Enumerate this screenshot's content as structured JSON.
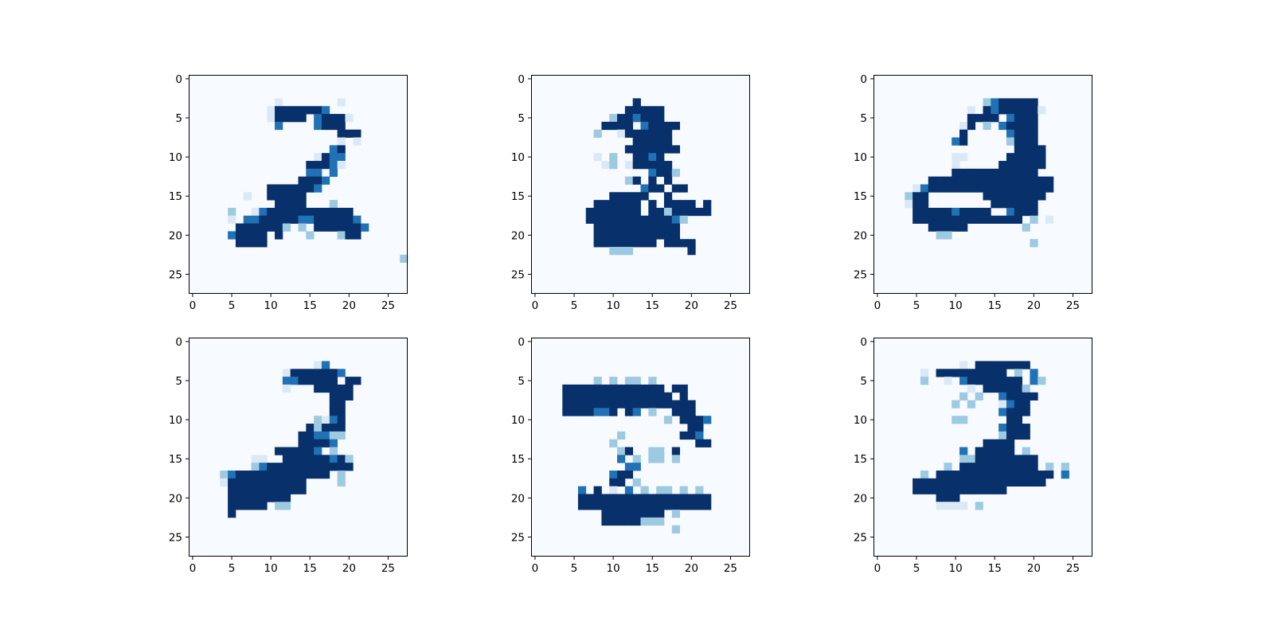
{
  "chart_data": [
    {
      "type": "heatmap",
      "title": "",
      "xlabel": "",
      "ylabel": "",
      "colormap": "Blues",
      "xlim": [
        -0.5,
        27.5
      ],
      "ylim": [
        27.5,
        -0.5
      ],
      "xticks": [
        0,
        5,
        10,
        15,
        20,
        25
      ],
      "yticks": [
        0,
        5,
        10,
        15,
        20,
        25
      ],
      "grid": false,
      "rows": [
        "............................",
        "............................",
        "............................",
        "...........1.......1........",
        "..........14444443..........",
        "..........14444.34441.......",
        "...........3....3444........",
        "...................444.......",
        "...................1.1.......",
        "..................34.........",
        "................1433.........",
        "...............44431.........",
        "...............33.3..........",
        "..............4443...........",
        "..........4444443............",
        ".......1..44444..............",
        "...........4444...2...........",
        ".....2..1344444444444......",
        ".....1.334444433444443......",
        "......4444442.2.4444443......",
        ".....34444.4...2...244.......",
        "......4444....................",
        "..............................",
        "...........................2..",
        "............................",
        "............................",
        "............................",
        "............................"
      ]
    },
    {
      "type": "heatmap",
      "title": "",
      "xlabel": "",
      "ylabel": "",
      "colormap": "Blues",
      "xlim": [
        -0.5,
        27.5
      ],
      "ylim": [
        27.5,
        -0.5
      ],
      "xticks": [
        0,
        5,
        10,
        15,
        20,
        25
      ],
      "yticks": [
        0,
        5,
        10,
        15,
        20,
        25
      ],
      "grid": false,
      "rows": [
        "............................",
        "............................",
        "............................",
        ".............4..............",
        "............44444...........",
        "..........2443444...........",
        ".........4444.34444.........",
        "........2..1444444..........",
        ".............44444..........",
        "............4444444.........",
        "........1.2..4434...........",
        ".........12.144444..........",
        "...............3442..........",
        "............24.4.4..........",
        "..............344.44..........",
        "..........44444..4..........",
        "........444444.4.4444.4.....",
        ".......4444444.44244444.....",
        ".......4444444444432........",
        "........44444444444.........",
        "........44444444444.........",
        "........44444444.4444.......",
        "..........222.......4......",
        "............................",
        "............................",
        "............................",
        "............................",
        "............................"
      ]
    },
    {
      "type": "heatmap",
      "title": "",
      "xlabel": "",
      "ylabel": "",
      "colormap": "Blues",
      "xlim": [
        -0.5,
        27.5
      ],
      "ylim": [
        27.5,
        -0.5
      ],
      "xticks": [
        0,
        5,
        10,
        15,
        20,
        25
      ],
      "yticks": [
        0,
        5,
        10,
        15,
        20,
        25
      ],
      "grid": false,
      "rows": [
        "............................",
        "............................",
        "............................",
        "..............2344444.......",
        "............1.43444441......",
        "............4444.3444.......",
        "...........14.2.34444.......",
        "...........4.....3444.......",
        "..........34.....2444.......",
        "..................4444......",
        "..........11.....44444......",
        "..........1.....444444......",
        "..........44444444444.......",
        ".......4444444444444444.....",
        ".....134444444444444444.....",
        "....244.......44444444......",
        "....144........444444.......",
        ".....4444434444..3444.......",
        ".....44444444444444.2.1......",
        ".......44444.......2.........",
        "........22...................",
        "....................2........",
        "............................",
        "............................",
        "............................",
        "............................",
        "............................",
        "............................"
      ]
    },
    {
      "type": "heatmap",
      "title": "",
      "xlabel": "",
      "ylabel": "",
      "colormap": "Blues",
      "xlim": [
        -0.5,
        27.5
      ],
      "ylim": [
        27.5,
        -0.5
      ],
      "xticks": [
        0,
        5,
        10,
        15,
        20,
        25
      ],
      "yticks": [
        0,
        5,
        10,
        15,
        20,
        25
      ],
      "grid": false,
      "rows": [
        "............................",
        "............................",
        "............................",
        "................13...........",
        "............14444443.........",
        "............3344444.44.......",
        "............1...44444.......",
        "..................444.......",
        "..................44........",
        "..................44........",
        "................2134........",
        "...............42444.........",
        "..............443322........",
        "..............44443.........",
        "...........444443.2.........",
        "........11..444444342.........",
        "........2344444444444........",
        "....23444444444444.2.......",
        "....14444444444....2......",
        ".....4444444444.............",
        ".....44444444...............",
        ".....44444.22...............",
        ".....4.......................",
        "............................",
        "............................",
        "............................",
        "............................",
        "............................"
      ]
    },
    {
      "type": "heatmap",
      "title": "",
      "xlabel": "",
      "ylabel": "",
      "colormap": "Blues",
      "xlim": [
        -0.5,
        27.5
      ],
      "ylim": [
        27.5,
        -0.5
      ],
      "xticks": [
        0,
        5,
        10,
        15,
        20,
        25
      ],
      "yticks": [
        0,
        5,
        10,
        15,
        20,
        25
      ],
      "grid": false,
      "rows": [
        "............................",
        "............................",
        "............................",
        "............................",
        "............................",
        "........2.2.22.2............",
        "....4444444444444.44........",
        "....44444444444444.4........",
        "....44444444444444444.......",
        "....4444334.43.2..444.......",
        ".................2.4443.....",
        "....................44......",
        "...........2.......443......",
        "..........2..........44......",
        "...........24..22.4.........",
        "...........3.2.22.2.........",
        "............33.........",
        "..........344...............",
        "..........44.2..............",
        "......3.4.1.3.2.22.2.2.......",
        "......44444444444444444......",
        "......44444444444444444......",
        ".........44444444.2.........",
        ".........44444222...........",
        "..................2.........",
        "............................",
        "............................",
        "............................"
      ]
    },
    {
      "type": "heatmap",
      "title": "",
      "xlabel": "",
      "ylabel": "",
      "colormap": "Blues",
      "xlim": [
        -0.5,
        27.5
      ],
      "ylim": [
        27.5,
        -0.5
      ],
      "xticks": [
        0,
        5,
        10,
        15,
        20,
        25
      ],
      "yticks": [
        0,
        5,
        10,
        15,
        20,
        25
      ],
      "grid": false,
      "rows": [
        "............................",
        "............................",
        "............................",
        "...........1.4444444.......",
        "......1.444444444.2.3......",
        "......2..1.34444444.32......",
        "............1.444442........",
        "...........2.2..34444.......",
        "..........2.2...1344........",
        "................3444........",
        "..........22.....44.........",
        "................3444........",
        "................2444........",
        "..............4444.........",
        "...........3.44444.2.........",
        "...........2244444444........",
        ".........2.4444444444.2.2....",
        "......2.444444444444444.3....",
        ".....44444444444444444.......",
        ".....444444444444...........",
        "........444.................",
        "........1111.2...............",
        "............................",
        "............................",
        "............................",
        "............................",
        "............................",
        "............................"
      ]
    }
  ]
}
